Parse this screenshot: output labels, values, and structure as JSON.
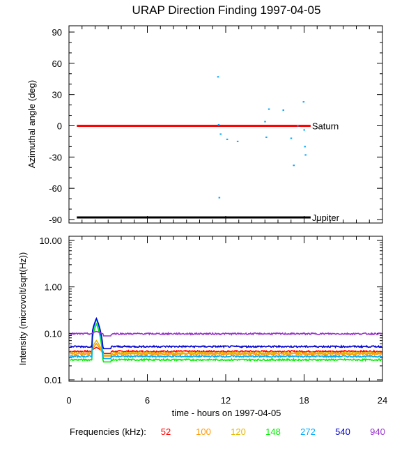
{
  "chart_data": [
    {
      "type": "scatter",
      "title": "URAP Direction Finding  1997-04-05",
      "xlabel": "",
      "ylabel": "Azimuthal angle (deg)",
      "xlim": [
        0,
        24
      ],
      "ylim": [
        -90,
        90
      ],
      "x_ticks": [
        0,
        6,
        12,
        18,
        24
      ],
      "y_ticks": [
        -90,
        -60,
        -30,
        0,
        30,
        60,
        90
      ],
      "y_tick_labels": [
        "-90",
        "-60",
        "-30",
        "0",
        "30",
        "60",
        "90"
      ],
      "reference_lines": [
        {
          "name": "Saturn",
          "value": 0,
          "x_start": 0.6,
          "x_end": 18.5,
          "color": "#ff0000"
        },
        {
          "name": "Jupiter",
          "value": -88,
          "x_start": 0.6,
          "x_end": 18.5,
          "color": "#000000"
        }
      ],
      "points": {
        "color": "#00aaff",
        "x": [
          11.4,
          11.45,
          11.6,
          12.1,
          12.9,
          15.0,
          15.1,
          15.3,
          16.4,
          17.0,
          17.2,
          17.5,
          17.95,
          18.0,
          18.05,
          18.1,
          11.5
        ],
        "y": [
          47,
          1,
          -8,
          -13,
          -15,
          4,
          -11,
          16,
          15,
          -12,
          -38,
          0,
          23,
          -4,
          -20,
          -28,
          -69
        ]
      }
    },
    {
      "type": "line",
      "title": "",
      "xlabel": "time - hours on 1997-04-05",
      "ylabel": "Intensity (microvolt/sqrt(Hz))",
      "xlim": [
        0,
        24
      ],
      "ylim": [
        0.01,
        10
      ],
      "yscale": "log",
      "x_ticks": [
        0,
        6,
        12,
        18,
        24
      ],
      "x_tick_labels": [
        "0",
        "6",
        "12",
        "18",
        "24"
      ],
      "y_ticks": [
        0.01,
        0.1,
        1,
        10
      ],
      "y_tick_labels": [
        "0.01",
        "0.10",
        "1.00",
        "10.00"
      ],
      "legend_title": "Frequencies (kHz):",
      "legend_location": "bottom",
      "series": [
        {
          "name": "52",
          "color": "#ff0000",
          "base": 0.041,
          "spike": 0.05
        },
        {
          "name": "100",
          "color": "#ff9900",
          "base": 0.036,
          "spike": 0.06
        },
        {
          "name": "120",
          "color": "#e6b800",
          "base": 0.038,
          "spike": 0.07
        },
        {
          "name": "148",
          "color": "#00ee00",
          "base": 0.027,
          "spike": 0.16
        },
        {
          "name": "272",
          "color": "#00aaff",
          "base": 0.032,
          "spike": 0.2
        },
        {
          "name": "540",
          "color": "#0000cc",
          "base": 0.052,
          "spike": 0.21
        },
        {
          "name": "940",
          "color": "#9933cc",
          "base": 0.098,
          "spike": 0.11
        }
      ]
    }
  ]
}
